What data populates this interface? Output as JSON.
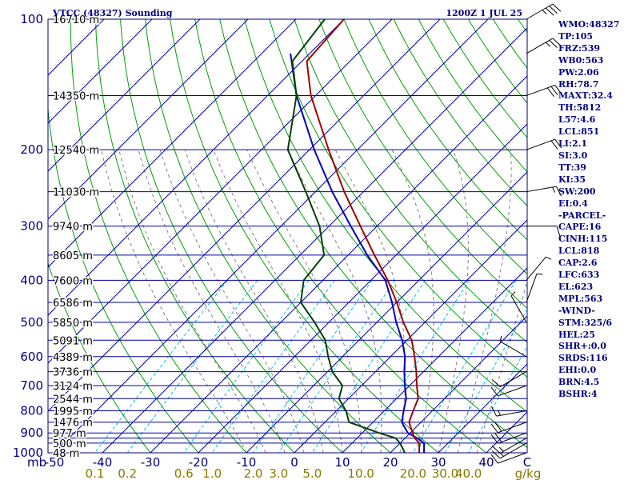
{
  "header": {
    "title": "VTCC (48327) Sounding",
    "time": "1200Z  1 JUL 25"
  },
  "chart_data": {
    "type": "skew-t",
    "pressure_labels": [
      100,
      200,
      300,
      400,
      500,
      600,
      700,
      800,
      900,
      1000
    ],
    "isobars": [
      100,
      150,
      200,
      250,
      300,
      350,
      400,
      450,
      500,
      550,
      600,
      650,
      700,
      750,
      800,
      850,
      900,
      925,
      950,
      1000
    ],
    "height_labels": [
      {
        "p": 100,
        "text": "16710 m"
      },
      {
        "p": 150,
        "text": "14350 m"
      },
      {
        "p": 200,
        "text": "12540 m"
      },
      {
        "p": 250,
        "text": "11030 m"
      },
      {
        "p": 300,
        "text": "9740 m"
      },
      {
        "p": 350,
        "text": "8605 m"
      },
      {
        "p": 400,
        "text": "7600 m"
      },
      {
        "p": 450,
        "text": "6586 m"
      },
      {
        "p": 500,
        "text": "5850 m"
      },
      {
        "p": 550,
        "text": "5091 m"
      },
      {
        "p": 600,
        "text": "4389 m"
      },
      {
        "p": 650,
        "text": "3736 m"
      },
      {
        "p": 700,
        "text": "3124 m"
      },
      {
        "p": 750,
        "text": "2544 m"
      },
      {
        "p": 800,
        "text": "1995 m"
      },
      {
        "p": 850,
        "text": "1476 m"
      },
      {
        "p": 900,
        "text": "977 m"
      },
      {
        "p": 950,
        "text": "500 m"
      },
      {
        "p": 1000,
        "text": "48 m"
      }
    ],
    "temp_axis": {
      "unit_left": "mb",
      "ticks": [
        -50,
        -40,
        -30,
        -20,
        -10,
        0,
        10,
        20,
        30,
        40
      ],
      "last_label": "C"
    },
    "mixing_ratio_labels": [
      "0.1",
      "0.2",
      "0.6",
      "1.0",
      "2.0",
      "3.0",
      "5.0",
      "10.0",
      "20.0",
      "30.0",
      "40.0",
      "g/kg"
    ],
    "temperature_c": [
      [
        1000,
        26
      ],
      [
        950,
        24
      ],
      [
        925,
        22
      ],
      [
        900,
        20.5
      ],
      [
        850,
        17.5
      ],
      [
        800,
        16
      ],
      [
        750,
        14.5
      ],
      [
        700,
        11.5
      ],
      [
        650,
        8.5
      ],
      [
        600,
        5
      ],
      [
        550,
        1
      ],
      [
        500,
        -4.5
      ],
      [
        450,
        -10
      ],
      [
        400,
        -16.5
      ],
      [
        350,
        -24.5
      ],
      [
        300,
        -33.5
      ],
      [
        250,
        -44
      ],
      [
        200,
        -56
      ],
      [
        150,
        -71
      ],
      [
        125,
        -79
      ],
      [
        100,
        -80
      ]
    ],
    "dewpoint_c": [
      [
        1000,
        23
      ],
      [
        950,
        20
      ],
      [
        925,
        18
      ],
      [
        900,
        13.5
      ],
      [
        850,
        5
      ],
      [
        800,
        2
      ],
      [
        750,
        -2
      ],
      [
        700,
        -4
      ],
      [
        650,
        -9
      ],
      [
        600,
        -13
      ],
      [
        550,
        -17
      ],
      [
        500,
        -23
      ],
      [
        450,
        -30
      ],
      [
        400,
        -34
      ],
      [
        350,
        -35
      ],
      [
        300,
        -42
      ],
      [
        250,
        -52
      ],
      [
        200,
        -64.5
      ],
      [
        150,
        -74
      ],
      [
        125,
        -82
      ],
      [
        100,
        -84
      ]
    ],
    "parcel_c": [
      [
        1000,
        27
      ],
      [
        950,
        25
      ],
      [
        925,
        22.5
      ],
      [
        900,
        19.5
      ],
      [
        850,
        16
      ],
      [
        800,
        14
      ],
      [
        750,
        12
      ],
      [
        700,
        9
      ],
      [
        650,
        6
      ],
      [
        600,
        3
      ],
      [
        550,
        -1
      ],
      [
        500,
        -6
      ],
      [
        450,
        -11
      ],
      [
        400,
        -17
      ],
      [
        350,
        -26
      ],
      [
        300,
        -35.5
      ],
      [
        250,
        -46.5
      ],
      [
        200,
        -59
      ],
      [
        150,
        -74
      ],
      [
        120,
        -84
      ]
    ],
    "wind_barbs": [
      {
        "p": 1000,
        "dir": 250,
        "spd": 10
      },
      {
        "p": 950,
        "dir": 240,
        "spd": 15
      },
      {
        "p": 925,
        "dir": 240,
        "spd": 15
      },
      {
        "p": 900,
        "dir": 250,
        "spd": 20
      },
      {
        "p": 850,
        "dir": 250,
        "spd": 20
      },
      {
        "p": 800,
        "dir": 260,
        "spd": 15
      },
      {
        "p": 700,
        "dir": 250,
        "spd": 10
      },
      {
        "p": 650,
        "dir": 240,
        "spd": 10
      },
      {
        "p": 600,
        "dir": 300,
        "spd": 5
      },
      {
        "p": 500,
        "dir": 330,
        "spd": 5
      },
      {
        "p": 450,
        "dir": 20,
        "spd": 5
      },
      {
        "p": 400,
        "dir": 40,
        "spd": 5
      },
      {
        "p": 300,
        "dir": 90,
        "spd": 10
      },
      {
        "p": 250,
        "dir": 80,
        "spd": 15
      },
      {
        "p": 200,
        "dir": 70,
        "spd": 20
      },
      {
        "p": 150,
        "dir": 70,
        "spd": 30
      },
      {
        "p": 120,
        "dir": 60,
        "spd": 25
      },
      {
        "p": 100,
        "dir": 60,
        "spd": 35
      }
    ]
  },
  "indices": [
    "WMO:48327",
    "TP:105",
    "FRZ:539",
    "WB0:563",
    "PW:2.06",
    "RH:78.7",
    "MAXT:32.4",
    "TH:5812",
    "L57:4.6",
    "LCL:851",
    "LI:2.1",
    "SI:3.0",
    "TT:39",
    "KI:35",
    "SW:200",
    "EI:0.4",
    "-PARCEL-",
    "CAPE:16",
    "CINH:115",
    "LCL:818",
    "CAP:2.6",
    "LFC:633",
    "EL:623",
    "MPL:563",
    "-WIND-",
    "STM:325/6",
    "HEL:25",
    "SHR+:0.0",
    "SRDS:116",
    "EHI:0.0",
    "BRN:4.5",
    "BSHR:4"
  ],
  "colors": {
    "frame": "#000080",
    "isobar": "#0000a0",
    "isotherm": "#00008b",
    "dry_adiabat": "#00a000",
    "moist_adiabat": "#808080",
    "mixing_ratio": "#00bfff",
    "temperature": "#a00000",
    "dewpoint": "#004000",
    "parcel": "#0000c0",
    "barb": "#000000",
    "mix_text": "#8b7a00"
  }
}
